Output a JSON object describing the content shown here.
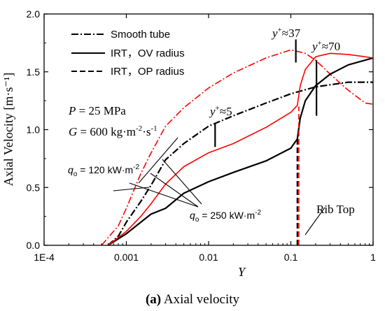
{
  "chart_data": {
    "type": "line",
    "x_scale": "log",
    "xlim": [
      0.0001,
      1
    ],
    "ylim": [
      0.0,
      2.0
    ],
    "xlabel": "Y",
    "ylabel": "Axial Velocity [m·s⁻¹]",
    "x_ticks": [
      {
        "value": 0.0001,
        "label": "1E-4"
      },
      {
        "value": 0.001,
        "label": "0.001"
      },
      {
        "value": 0.01,
        "label": "0.01"
      },
      {
        "value": 0.1,
        "label": "0.1"
      },
      {
        "value": 1,
        "label": "1"
      }
    ],
    "y_ticks": [
      {
        "value": 0.0,
        "label": "0.0"
      },
      {
        "value": 0.5,
        "label": "0.5"
      },
      {
        "value": 1.0,
        "label": "1.0"
      },
      {
        "value": 1.5,
        "label": "1.5"
      },
      {
        "value": 2.0,
        "label": "2.0"
      }
    ],
    "caption": {
      "bold": "(a)",
      "text": " Axial velocity"
    },
    "legend": [
      {
        "label": "Smooth tube",
        "dash": "dashdot"
      },
      {
        "label": "IRT，OV radius",
        "dash": "solid"
      },
      {
        "label": "IRT，OP radius",
        "dash": "dashed"
      }
    ],
    "conditions": {
      "pressure_var": "P",
      "pressure_rest": " = 25 MPa",
      "flux_var": "G",
      "flux_rest": " = 600 kg·m",
      "flux_sup1": "-2",
      "flux_mid": "·s",
      "flux_sup2": "-1"
    },
    "annotations": {
      "yplus_base": "y",
      "yplus_sup": "+",
      "yplus_5": "≈5",
      "yplus_37": "≈37",
      "yplus_70": "≈70",
      "q120_base": "q",
      "q120_sub": "o",
      "q120_rest": " = 120 kW·m",
      "q120_sup": "-2",
      "q250_base": "q",
      "q250_sub": "o",
      "q250_rest": " = 250 kW·m",
      "q250_sup": "-2",
      "rib_top": "Rib Top"
    },
    "series": [
      {
        "name": "Smooth tube",
        "heat_flux": "120",
        "color": "#000000",
        "dash": "dashdot",
        "x": [
          0.0006,
          0.0008,
          0.001,
          0.0015,
          0.002,
          0.003,
          0.005,
          0.01,
          0.02,
          0.05,
          0.1,
          0.2,
          0.5,
          1
        ],
        "y": [
          0.0,
          0.08,
          0.2,
          0.38,
          0.52,
          0.74,
          0.88,
          1.03,
          1.12,
          1.23,
          1.31,
          1.37,
          1.41,
          1.41
        ]
      },
      {
        "name": "Smooth tube",
        "heat_flux": "250",
        "color": "#ff0000",
        "dash": "dashdot",
        "x": [
          0.0005,
          0.0008,
          0.001,
          0.0015,
          0.002,
          0.003,
          0.005,
          0.01,
          0.02,
          0.05,
          0.1,
          0.15,
          0.2,
          0.3,
          0.5,
          0.8,
          1
        ],
        "y": [
          0.0,
          0.17,
          0.32,
          0.62,
          0.8,
          1.03,
          1.19,
          1.36,
          1.49,
          1.62,
          1.69,
          1.66,
          1.6,
          1.48,
          1.34,
          1.23,
          1.22
        ]
      },
      {
        "name": "IRT，OV radius",
        "heat_flux": "120",
        "color": "#000000",
        "dash": "solid",
        "x": [
          0.0006,
          0.001,
          0.0015,
          0.002,
          0.003,
          0.005,
          0.01,
          0.02,
          0.05,
          0.1,
          0.12,
          0.13,
          0.15,
          0.2,
          0.3,
          0.5,
          1
        ],
        "y": [
          0.0,
          0.1,
          0.2,
          0.27,
          0.32,
          0.45,
          0.55,
          0.63,
          0.73,
          0.84,
          0.92,
          1.1,
          1.25,
          1.38,
          1.48,
          1.56,
          1.62
        ]
      },
      {
        "name": "IRT，OV radius",
        "heat_flux": "250",
        "color": "#ff0000",
        "dash": "solid",
        "x": [
          0.0006,
          0.001,
          0.0015,
          0.002,
          0.003,
          0.005,
          0.01,
          0.02,
          0.05,
          0.1,
          0.12,
          0.13,
          0.15,
          0.2,
          0.3,
          0.5,
          1
        ],
        "y": [
          0.0,
          0.12,
          0.25,
          0.36,
          0.53,
          0.68,
          0.8,
          0.88,
          1.02,
          1.15,
          1.21,
          1.38,
          1.52,
          1.63,
          1.66,
          1.65,
          1.62
        ]
      },
      {
        "name": "IRT，OP radius",
        "heat_flux": "120",
        "color": "#000000",
        "dash": "dashed",
        "x": [
          0.12,
          0.12
        ],
        "y": [
          0.0,
          0.93
        ]
      },
      {
        "name": "IRT，OP radius",
        "heat_flux": "250",
        "color": "#ff0000",
        "dash": "dashed",
        "x": [
          0.125,
          0.125
        ],
        "y": [
          0.0,
          1.2
        ]
      }
    ],
    "markers": [
      {
        "label": "≈5",
        "x": 0.012,
        "y": [
          0.85,
          1.05
        ]
      },
      {
        "label": "≈37",
        "x": 0.115,
        "y": [
          1.58,
          1.78
        ]
      },
      {
        "label": "≈70",
        "x": 0.205,
        "y": [
          1.12,
          1.6
        ]
      }
    ]
  }
}
